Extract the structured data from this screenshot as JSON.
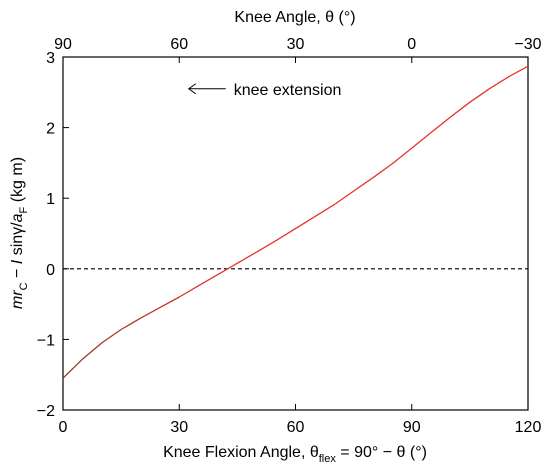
{
  "chart_data": {
    "type": "line",
    "x_bottom": {
      "ticks": [
        0,
        30,
        60,
        90,
        120
      ],
      "tick_labels": [
        "0",
        "30",
        "60",
        "90",
        "120"
      ],
      "range": [
        0,
        120
      ],
      "label_prefix": "Knee Flexion Angle, θ",
      "label_sub": "flex",
      "label_suffix": " = 90° − θ (°)"
    },
    "x_top": {
      "ticks": [
        90,
        60,
        30,
        0,
        -30
      ],
      "tick_labels": [
        "90",
        "60",
        "30",
        "0",
        "−30"
      ],
      "range": [
        90,
        -30
      ],
      "label": "Knee Angle, θ (°)"
    },
    "y": {
      "ticks": [
        -2,
        -1,
        0,
        1,
        2,
        3
      ],
      "tick_labels": [
        "−2",
        "−1",
        "0",
        "1",
        "2",
        "3"
      ],
      "range": [
        -2,
        3
      ],
      "label_parts": [
        {
          "text": "mr",
          "italic": true,
          "sub": false
        },
        {
          "text": "C",
          "italic": false,
          "sub": true
        },
        {
          "text": " − ",
          "italic": false,
          "sub": false
        },
        {
          "text": "I",
          "italic": true,
          "sub": false
        },
        {
          "text": " sinγ/",
          "italic": false,
          "sub": false
        },
        {
          "text": "a",
          "italic": true,
          "sub": false
        },
        {
          "text": "F",
          "italic": false,
          "sub": true
        },
        {
          "text": " (kg m)",
          "italic": false,
          "sub": false
        }
      ]
    },
    "series": [
      {
        "color": "#e8322c",
        "start_color": "#8a3a2a",
        "x": [
          0,
          5,
          10,
          15,
          20,
          25,
          30,
          35,
          40,
          45,
          50,
          55,
          60,
          65,
          70,
          75,
          80,
          85,
          90,
          95,
          100,
          105,
          110,
          115,
          120
        ],
        "y": [
          -1.55,
          -1.28,
          -1.05,
          -0.86,
          -0.7,
          -0.55,
          -0.4,
          -0.24,
          -0.08,
          0.08,
          0.24,
          0.4,
          0.57,
          0.74,
          0.91,
          1.1,
          1.29,
          1.49,
          1.71,
          1.93,
          2.15,
          2.36,
          2.55,
          2.72,
          2.87
        ]
      }
    ],
    "reference_line": {
      "y": 0,
      "style": "dashed",
      "color": "#000000"
    },
    "annotation": {
      "text": "knee extension",
      "arrow": "left",
      "x": 42,
      "y": 2.55
    },
    "grid": false,
    "legend": "none"
  }
}
